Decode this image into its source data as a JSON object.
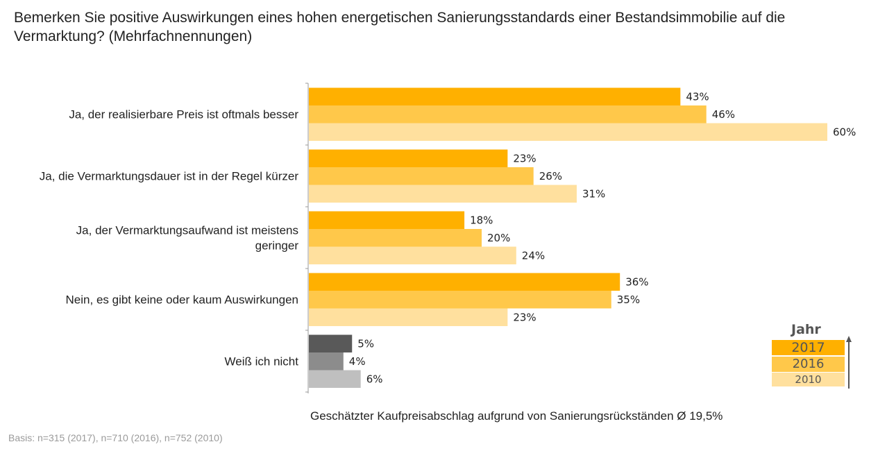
{
  "title": {
    "line1": "Bemerken Sie positive Auswirkungen eines hohen energetischen Sanierungsstandards einer Bestandsimmobilie auf die",
    "line2": "Vermarktung? (Mehrfachnennungen)"
  },
  "note": "Geschätzter Kaufpreisabschlag aufgrund von Sanierungsrückständen Ø 19,5%",
  "basis": "Basis: n=315 (2017), n=710 (2016), n=752 (2010)",
  "legend": {
    "title": "Jahr",
    "items": [
      {
        "label": "2017",
        "color": "#FFB000"
      },
      {
        "label": "2016",
        "color": "#FFC84A"
      },
      {
        "label": "2010",
        "color": "#FFE09E"
      }
    ]
  },
  "chart_data": {
    "type": "bar",
    "orientation": "horizontal",
    "categories": [
      [
        "Ja, der realisierbare Preis ist oftmals besser"
      ],
      [
        "Ja, die Vermarktungsdauer ist in der Regel kürzer"
      ],
      [
        "Ja, der Vermarktungsaufwand ist meistens",
        "geringer"
      ],
      [
        "Nein, es gibt keine oder kaum Auswirkungen"
      ],
      [
        "Weiß ich nicht"
      ]
    ],
    "series": [
      {
        "name": "2017",
        "values": [
          43,
          23,
          18,
          36,
          5
        ],
        "labels": [
          "43%",
          "23%",
          "18%",
          "36%",
          "5%"
        ]
      },
      {
        "name": "2016",
        "values": [
          46,
          26,
          20,
          35,
          4
        ],
        "labels": [
          "46%",
          "26%",
          "20%",
          "35%",
          "4%"
        ]
      },
      {
        "name": "2010",
        "values": [
          60,
          31,
          24,
          23,
          6
        ],
        "labels": [
          "60%",
          "31%",
          "24%",
          "23%",
          "6%"
        ]
      }
    ],
    "series_colors": [
      "#FFB000",
      "#FFC84A",
      "#FFE09E"
    ],
    "gray_colors": [
      "#595959",
      "#8C8C8C",
      "#BFBFBF"
    ],
    "gray_category_index": 4,
    "xlim": [
      0,
      100
    ],
    "unit": "%",
    "legend_position": "bottom-right"
  }
}
